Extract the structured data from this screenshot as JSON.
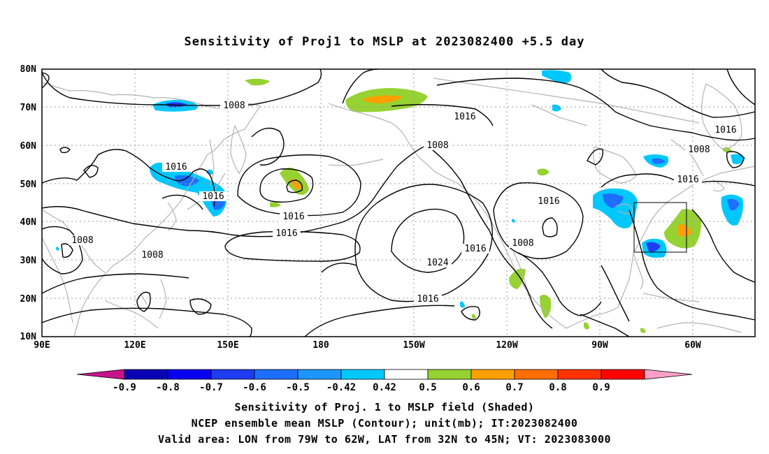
{
  "title": "Sensitivity of Proj1 to MSLP at 2023082400 +5.5 day",
  "map": {
    "lat_labels": [
      "80N",
      "70N",
      "60N",
      "50N",
      "40N",
      "30N",
      "20N",
      "10N"
    ],
    "lon_labels": [
      "90E",
      "120E",
      "150E",
      "180",
      "150W",
      "120W",
      "90W",
      "60W"
    ],
    "contour_labels": [
      "1008",
      "1016",
      "1016",
      "1008",
      "1016",
      "1016",
      "1016",
      "1008",
      "1016",
      "1008",
      "1008",
      "1016",
      "1024",
      "1016",
      "1016",
      "1008",
      "1016"
    ],
    "valid_box": {
      "lon_from": "79W",
      "lon_to": "62W",
      "lat_from": "32N",
      "lat_to": "45N"
    },
    "colors": {
      "coast": "#b4b4b4",
      "contour": "#000000",
      "grid": "#9a9a9a"
    }
  },
  "colorbar": {
    "labels": [
      "-0.9",
      "-0.8",
      "-0.7",
      "-0.6",
      "-0.5",
      "-0.42",
      "0.42",
      "0.5",
      "0.6",
      "0.7",
      "0.8",
      "0.9"
    ],
    "colors": [
      "#c8148c",
      "#0a00b4",
      "#0a00f0",
      "#1e3cf0",
      "#1e6eff",
      "#1e96ff",
      "#00c8ff",
      "#ffffff",
      "#96d232",
      "#ffa000",
      "#ff6e00",
      "#ff3200",
      "#ff0000",
      "#ffa0c8"
    ]
  },
  "caption": {
    "line1": "Sensitivity of Proj. 1 to MSLP field (Shaded)",
    "line2": "NCEP ensemble mean MSLP (Contour); unit(mb); IT:2023082400",
    "line3": "Valid area: LON from 79W to 62W, LAT from 32N to 45N; VT: 2023083000"
  }
}
